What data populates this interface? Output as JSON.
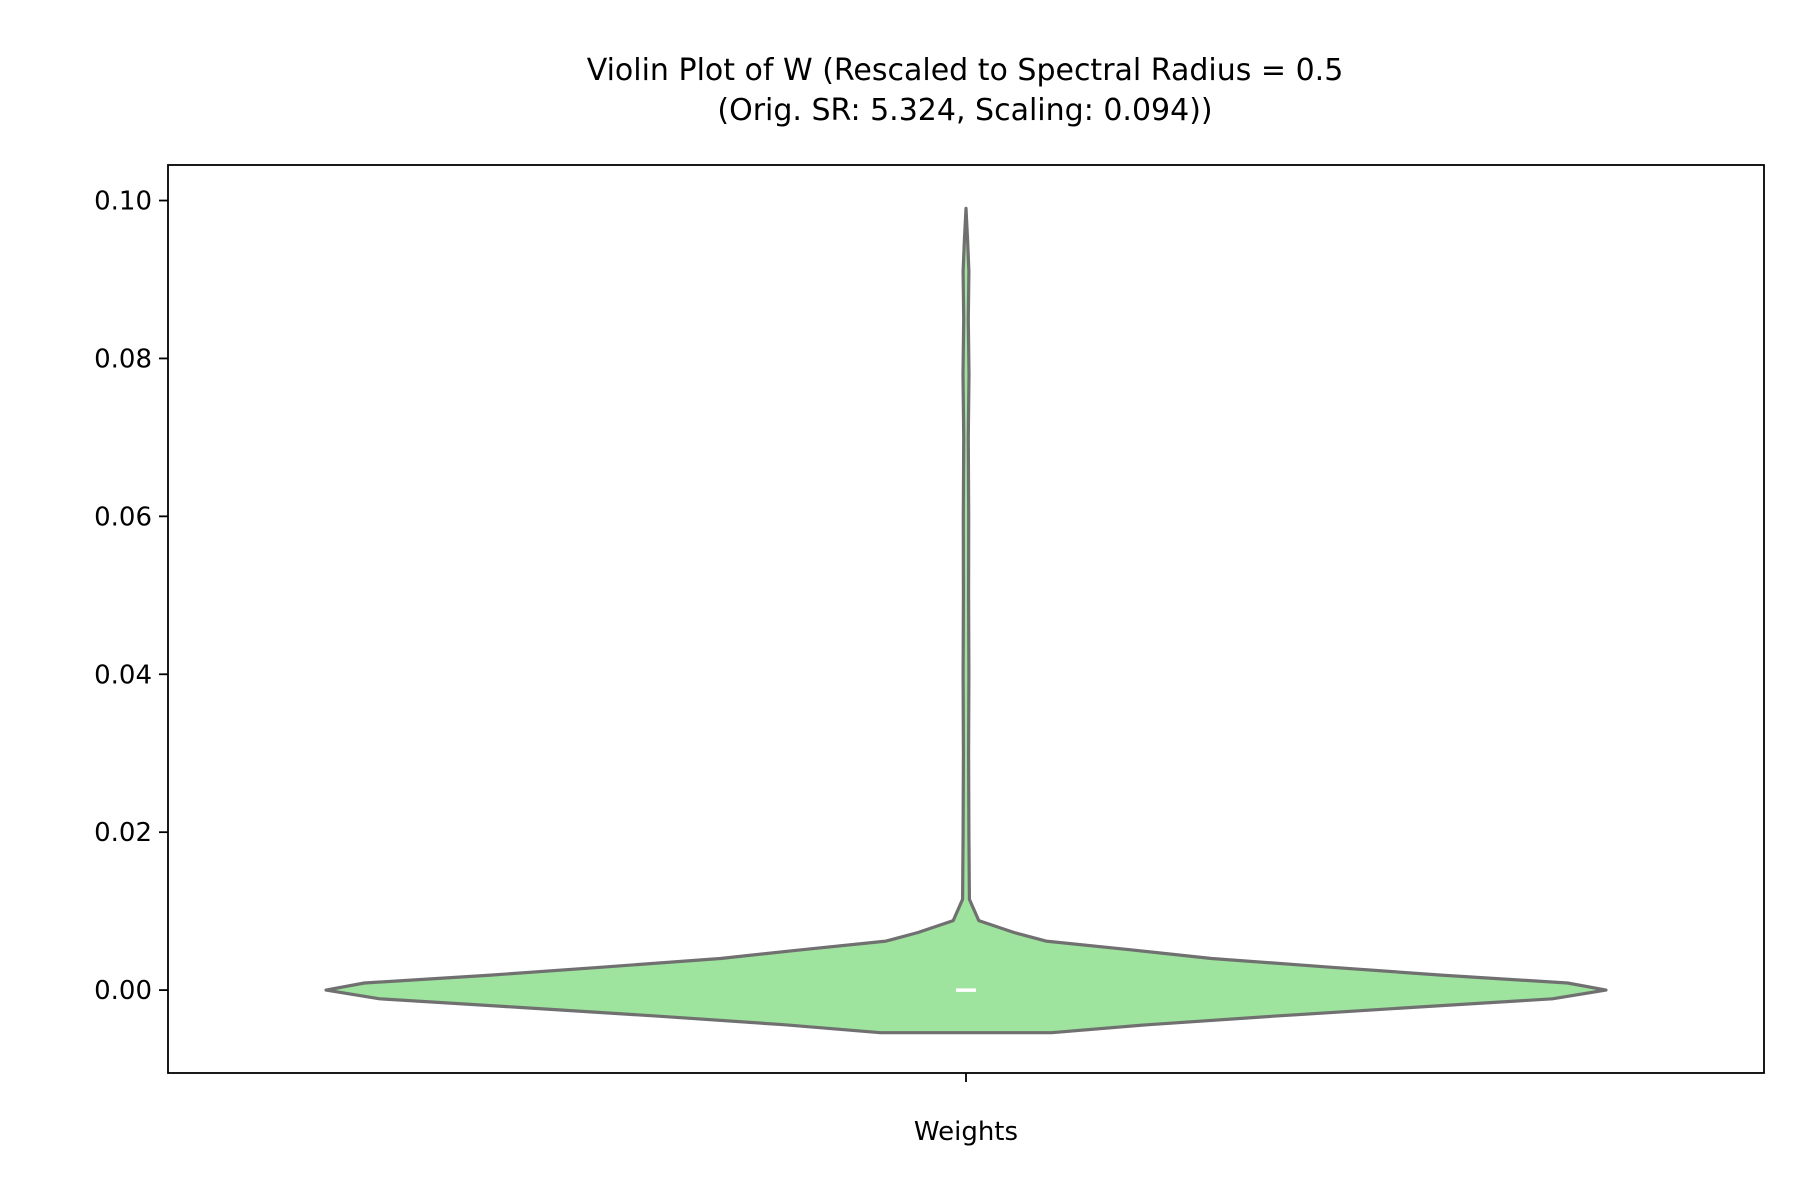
{
  "chart_data": {
    "type": "violin",
    "title": "Violin Plot of W (Rescaled to Spectral Radius = 0.5",
    "subtitle": "(Orig. SR: 5.324, Scaling: 0.094))",
    "xlabel": "",
    "ylabel": "",
    "categories": [
      "Weights"
    ],
    "ylim": [
      -0.0105,
      0.1045
    ],
    "yticks": [
      0.0,
      0.02,
      0.04,
      0.06,
      0.08,
      0.1
    ],
    "ytick_labels": [
      "0.00",
      "0.02",
      "0.04",
      "0.06",
      "0.08",
      "0.10"
    ],
    "grid": false,
    "colors": {
      "fill": "#9ee39e",
      "edge": "#707070",
      "median": "#ffffff"
    },
    "violin": {
      "category": "Weights",
      "median": 0.0,
      "min": -0.0054,
      "max": 0.099,
      "density_profile": [
        {
          "y": -0.0054,
          "w": 0.0
        },
        {
          "y": -0.0054,
          "w": 0.055
        },
        {
          "y": -0.0054,
          "w": 0.107
        },
        {
          "y": -0.0044,
          "w": 0.226
        },
        {
          "y": -0.0033,
          "w": 0.384
        },
        {
          "y": -0.0022,
          "w": 0.556
        },
        {
          "y": -0.0011,
          "w": 0.733
        },
        {
          "y": 0.0,
          "w": 0.8
        },
        {
          "y": 0.0009,
          "w": 0.752
        },
        {
          "y": 0.0019,
          "w": 0.594
        },
        {
          "y": 0.0029,
          "w": 0.455
        },
        {
          "y": 0.004,
          "w": 0.307
        },
        {
          "y": 0.0051,
          "w": 0.206
        },
        {
          "y": 0.0062,
          "w": 0.1
        },
        {
          "y": 0.0073,
          "w": 0.06
        },
        {
          "y": 0.0088,
          "w": 0.016
        },
        {
          "y": 0.0115,
          "w": 0.0043
        },
        {
          "y": 0.02,
          "w": 0.0036
        },
        {
          "y": 0.03,
          "w": 0.0033
        },
        {
          "y": 0.04,
          "w": 0.0036
        },
        {
          "y": 0.05,
          "w": 0.0032
        },
        {
          "y": 0.06,
          "w": 0.0034
        },
        {
          "y": 0.07,
          "w": 0.0029
        },
        {
          "y": 0.078,
          "w": 0.0038
        },
        {
          "y": 0.085,
          "w": 0.0029
        },
        {
          "y": 0.091,
          "w": 0.0036
        },
        {
          "y": 0.095,
          "w": 0.002
        },
        {
          "y": 0.099,
          "w": 0.0
        }
      ]
    }
  }
}
